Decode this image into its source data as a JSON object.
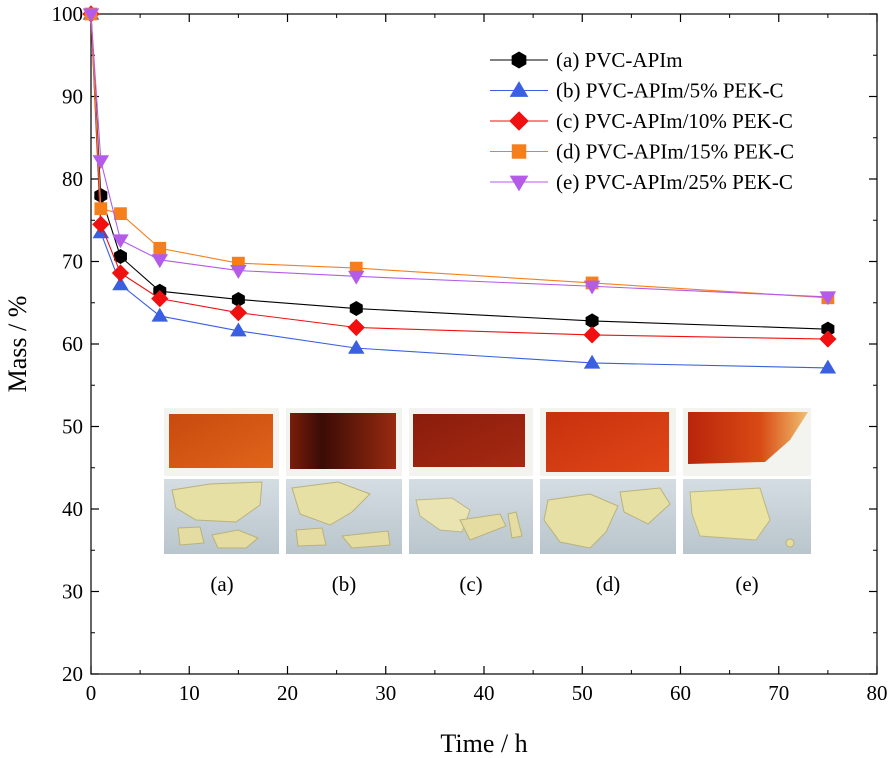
{
  "chart_data": {
    "type": "line",
    "xlabel": "Time  /  h",
    "ylabel": "Mass  /  %",
    "xlim": [
      0,
      80
    ],
    "ylim": [
      20,
      100
    ],
    "x_ticks": [
      0,
      10,
      20,
      30,
      40,
      50,
      60,
      70,
      80
    ],
    "y_ticks": [
      20,
      30,
      40,
      50,
      60,
      70,
      80,
      90,
      100
    ],
    "grid": false,
    "legend_position": "top-right",
    "x": [
      0,
      1,
      3,
      7,
      15,
      27,
      51,
      75
    ],
    "series": [
      {
        "name": "(a) PVC-APIm",
        "marker": "hexagon",
        "color": "#000000",
        "values": [
          100,
          78.0,
          70.6,
          66.4,
          65.4,
          64.3,
          62.8,
          61.8
        ]
      },
      {
        "name": "(b) PVC-APIm/5% PEK-C",
        "marker": "triangle-up",
        "color": "#3a5fe0",
        "values": [
          100,
          73.5,
          67.2,
          63.4,
          61.6,
          59.5,
          57.7,
          57.1
        ]
      },
      {
        "name": "(c) PVC-APIm/10% PEK-C",
        "marker": "diamond",
        "color": "#f01010",
        "values": [
          100,
          74.5,
          68.6,
          65.5,
          63.8,
          62.0,
          61.1,
          60.6
        ]
      },
      {
        "name": "(d) PVC-APIm/15% PEK-C",
        "marker": "square",
        "color": "#f77f1b",
        "values": [
          100,
          76.4,
          75.8,
          71.6,
          69.8,
          69.2,
          67.4,
          65.6
        ]
      },
      {
        "name": "(e) PVC-APIm/25% PEK-C",
        "marker": "triangle-down",
        "color": "#b45be8",
        "values": [
          100,
          82.2,
          72.6,
          70.2,
          68.9,
          68.2,
          67.0,
          65.7
        ]
      }
    ],
    "inset": {
      "labels": [
        "(a)",
        "(b)",
        "(c)",
        "(d)",
        "(e)"
      ]
    }
  }
}
